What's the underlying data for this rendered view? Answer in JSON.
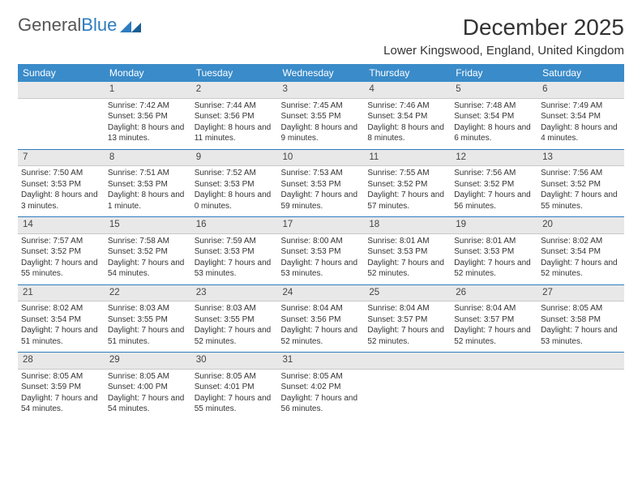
{
  "logo": {
    "part1": "General",
    "part2": "Blue"
  },
  "title": "December 2025",
  "location": "Lower Kingswood, England, United Kingdom",
  "weekdays": [
    "Sunday",
    "Monday",
    "Tuesday",
    "Wednesday",
    "Thursday",
    "Friday",
    "Saturday"
  ],
  "colors": {
    "header_bg": "#3a8bc9",
    "header_text": "#ffffff",
    "daynum_bg": "#e8e8e8",
    "divider": "#2e7cc0",
    "text": "#333333",
    "logo_gray": "#555555",
    "logo_blue": "#2e7cc0"
  },
  "weeks": [
    {
      "nums": [
        "",
        "1",
        "2",
        "3",
        "4",
        "5",
        "6"
      ],
      "cells": [
        {
          "sunrise": "",
          "sunset": "",
          "daylight": ""
        },
        {
          "sunrise": "Sunrise: 7:42 AM",
          "sunset": "Sunset: 3:56 PM",
          "daylight": "Daylight: 8 hours and 13 minutes."
        },
        {
          "sunrise": "Sunrise: 7:44 AM",
          "sunset": "Sunset: 3:56 PM",
          "daylight": "Daylight: 8 hours and 11 minutes."
        },
        {
          "sunrise": "Sunrise: 7:45 AM",
          "sunset": "Sunset: 3:55 PM",
          "daylight": "Daylight: 8 hours and 9 minutes."
        },
        {
          "sunrise": "Sunrise: 7:46 AM",
          "sunset": "Sunset: 3:54 PM",
          "daylight": "Daylight: 8 hours and 8 minutes."
        },
        {
          "sunrise": "Sunrise: 7:48 AM",
          "sunset": "Sunset: 3:54 PM",
          "daylight": "Daylight: 8 hours and 6 minutes."
        },
        {
          "sunrise": "Sunrise: 7:49 AM",
          "sunset": "Sunset: 3:54 PM",
          "daylight": "Daylight: 8 hours and 4 minutes."
        }
      ]
    },
    {
      "nums": [
        "7",
        "8",
        "9",
        "10",
        "11",
        "12",
        "13"
      ],
      "cells": [
        {
          "sunrise": "Sunrise: 7:50 AM",
          "sunset": "Sunset: 3:53 PM",
          "daylight": "Daylight: 8 hours and 3 minutes."
        },
        {
          "sunrise": "Sunrise: 7:51 AM",
          "sunset": "Sunset: 3:53 PM",
          "daylight": "Daylight: 8 hours and 1 minute."
        },
        {
          "sunrise": "Sunrise: 7:52 AM",
          "sunset": "Sunset: 3:53 PM",
          "daylight": "Daylight: 8 hours and 0 minutes."
        },
        {
          "sunrise": "Sunrise: 7:53 AM",
          "sunset": "Sunset: 3:53 PM",
          "daylight": "Daylight: 7 hours and 59 minutes."
        },
        {
          "sunrise": "Sunrise: 7:55 AM",
          "sunset": "Sunset: 3:52 PM",
          "daylight": "Daylight: 7 hours and 57 minutes."
        },
        {
          "sunrise": "Sunrise: 7:56 AM",
          "sunset": "Sunset: 3:52 PM",
          "daylight": "Daylight: 7 hours and 56 minutes."
        },
        {
          "sunrise": "Sunrise: 7:56 AM",
          "sunset": "Sunset: 3:52 PM",
          "daylight": "Daylight: 7 hours and 55 minutes."
        }
      ]
    },
    {
      "nums": [
        "14",
        "15",
        "16",
        "17",
        "18",
        "19",
        "20"
      ],
      "cells": [
        {
          "sunrise": "Sunrise: 7:57 AM",
          "sunset": "Sunset: 3:52 PM",
          "daylight": "Daylight: 7 hours and 55 minutes."
        },
        {
          "sunrise": "Sunrise: 7:58 AM",
          "sunset": "Sunset: 3:52 PM",
          "daylight": "Daylight: 7 hours and 54 minutes."
        },
        {
          "sunrise": "Sunrise: 7:59 AM",
          "sunset": "Sunset: 3:53 PM",
          "daylight": "Daylight: 7 hours and 53 minutes."
        },
        {
          "sunrise": "Sunrise: 8:00 AM",
          "sunset": "Sunset: 3:53 PM",
          "daylight": "Daylight: 7 hours and 53 minutes."
        },
        {
          "sunrise": "Sunrise: 8:01 AM",
          "sunset": "Sunset: 3:53 PM",
          "daylight": "Daylight: 7 hours and 52 minutes."
        },
        {
          "sunrise": "Sunrise: 8:01 AM",
          "sunset": "Sunset: 3:53 PM",
          "daylight": "Daylight: 7 hours and 52 minutes."
        },
        {
          "sunrise": "Sunrise: 8:02 AM",
          "sunset": "Sunset: 3:54 PM",
          "daylight": "Daylight: 7 hours and 52 minutes."
        }
      ]
    },
    {
      "nums": [
        "21",
        "22",
        "23",
        "24",
        "25",
        "26",
        "27"
      ],
      "cells": [
        {
          "sunrise": "Sunrise: 8:02 AM",
          "sunset": "Sunset: 3:54 PM",
          "daylight": "Daylight: 7 hours and 51 minutes."
        },
        {
          "sunrise": "Sunrise: 8:03 AM",
          "sunset": "Sunset: 3:55 PM",
          "daylight": "Daylight: 7 hours and 51 minutes."
        },
        {
          "sunrise": "Sunrise: 8:03 AM",
          "sunset": "Sunset: 3:55 PM",
          "daylight": "Daylight: 7 hours and 52 minutes."
        },
        {
          "sunrise": "Sunrise: 8:04 AM",
          "sunset": "Sunset: 3:56 PM",
          "daylight": "Daylight: 7 hours and 52 minutes."
        },
        {
          "sunrise": "Sunrise: 8:04 AM",
          "sunset": "Sunset: 3:57 PM",
          "daylight": "Daylight: 7 hours and 52 minutes."
        },
        {
          "sunrise": "Sunrise: 8:04 AM",
          "sunset": "Sunset: 3:57 PM",
          "daylight": "Daylight: 7 hours and 52 minutes."
        },
        {
          "sunrise": "Sunrise: 8:05 AM",
          "sunset": "Sunset: 3:58 PM",
          "daylight": "Daylight: 7 hours and 53 minutes."
        }
      ]
    },
    {
      "nums": [
        "28",
        "29",
        "30",
        "31",
        "",
        "",
        ""
      ],
      "cells": [
        {
          "sunrise": "Sunrise: 8:05 AM",
          "sunset": "Sunset: 3:59 PM",
          "daylight": "Daylight: 7 hours and 54 minutes."
        },
        {
          "sunrise": "Sunrise: 8:05 AM",
          "sunset": "Sunset: 4:00 PM",
          "daylight": "Daylight: 7 hours and 54 minutes."
        },
        {
          "sunrise": "Sunrise: 8:05 AM",
          "sunset": "Sunset: 4:01 PM",
          "daylight": "Daylight: 7 hours and 55 minutes."
        },
        {
          "sunrise": "Sunrise: 8:05 AM",
          "sunset": "Sunset: 4:02 PM",
          "daylight": "Daylight: 7 hours and 56 minutes."
        },
        {
          "sunrise": "",
          "sunset": "",
          "daylight": ""
        },
        {
          "sunrise": "",
          "sunset": "",
          "daylight": ""
        },
        {
          "sunrise": "",
          "sunset": "",
          "daylight": ""
        }
      ]
    }
  ]
}
